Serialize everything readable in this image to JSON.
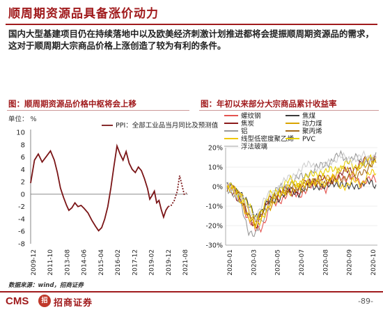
{
  "slide": {
    "title": "顺周期资源品具备涨价动力",
    "body": "国内大型基建项目仍在持续落地中以及欧美经济刺激计划推进都将会提振顺周期资源品的需求，这对于顺周期大宗商品价格上涨创造了较为有利的条件。",
    "source": "数据来源：wind，招商证券",
    "brand_en": "CMS",
    "brand_logo": "招",
    "brand_cn": "招商证券",
    "page": "-89-"
  },
  "colors": {
    "accent": "#a01a1c",
    "ppi_line": "#7a1416"
  },
  "chart_data": [
    {
      "type": "line",
      "title": "图：顺周期资源品价格中枢将会上移",
      "unit_label": "单位：  %",
      "legend": [
        "PPI：全部工业品当月同比及预测值"
      ],
      "legend_position": "top-right",
      "ylim": [
        -8,
        10
      ],
      "yticks": [
        -8,
        -6,
        -4,
        -2,
        0,
        2,
        4,
        6,
        8,
        10
      ],
      "xticks": [
        "2009-12",
        "2011-10",
        "2013-08",
        "2014-06",
        "2015-04",
        "2016-02",
        "2017-12",
        "2019-02",
        "2019-12",
        "2021-08"
      ],
      "grid": false,
      "series": [
        {
          "name": "PPI：全部工业品当月同比及预测值",
          "style": "solid",
          "points": [
            [
              0,
              1.8
            ],
            [
              0.5,
              5.5
            ],
            [
              1,
              6.5
            ],
            [
              1.5,
              5.2
            ],
            [
              2,
              6.0
            ],
            [
              2.6,
              7.0
            ],
            [
              3.1,
              5.5
            ],
            [
              3.5,
              3.5
            ],
            [
              3.9,
              1.0
            ],
            [
              4.3,
              -0.5
            ],
            [
              4.7,
              -1.8
            ],
            [
              5,
              -2.6
            ],
            [
              5.4,
              -2.2
            ],
            [
              5.8,
              -1.4
            ],
            [
              6.2,
              -2.0
            ],
            [
              6.6,
              -1.8
            ],
            [
              7,
              -2.3
            ],
            [
              7.5,
              -3.0
            ],
            [
              8,
              -4.2
            ],
            [
              8.5,
              -5.2
            ],
            [
              8.9,
              -5.9
            ],
            [
              9.3,
              -5.4
            ],
            [
              9.7,
              -4.0
            ],
            [
              10.1,
              -2.0
            ],
            [
              10.5,
              1.0
            ],
            [
              10.9,
              4.5
            ],
            [
              11.3,
              7.8
            ],
            [
              11.7,
              6.5
            ],
            [
              12.1,
              5.5
            ],
            [
              12.5,
              6.9
            ],
            [
              12.9,
              5.0
            ],
            [
              13.3,
              4.0
            ],
            [
              13.7,
              3.5
            ],
            [
              14.1,
              4.4
            ],
            [
              14.5,
              3.8
            ],
            [
              14.9,
              2.5
            ],
            [
              15.3,
              0.9
            ],
            [
              15.6,
              -0.8
            ],
            [
              15.9,
              -0.2
            ],
            [
              16.2,
              0.5
            ],
            [
              16.5,
              -1.4
            ],
            [
              16.8,
              -1.0
            ],
            [
              17.1,
              -2.5
            ],
            [
              17.4,
              -3.7
            ],
            [
              17.7,
              -2.6
            ],
            [
              18,
              -2.0
            ]
          ]
        },
        {
          "name": "预测值",
          "style": "dotted",
          "points": [
            [
              18,
              -2.0
            ],
            [
              18.4,
              -1.8
            ],
            [
              18.8,
              -1.0
            ],
            [
              19.2,
              0.5
            ],
            [
              19.5,
              3.0
            ],
            [
              19.8,
              1.5
            ],
            [
              20.1,
              0.0
            ],
            [
              20.4,
              0.2
            ]
          ]
        }
      ]
    },
    {
      "type": "line",
      "title": "图：年初以来部分大宗商品累计收益率",
      "ylim": [
        -30,
        20
      ],
      "yticks": [
        "20%",
        "10%",
        "0%",
        "-10%",
        "-20%",
        "-30%"
      ],
      "xticks": [
        "2020-01",
        "2020-03",
        "2020-05",
        "2020-07",
        "2020-08",
        "2020-09",
        "2020-10"
      ],
      "grid": true,
      "legend_position": "top-left",
      "series": [
        {
          "name": "螺纹钢",
          "color": "#e4534f"
        },
        {
          "name": "焦煤",
          "color": "#3a3a3a"
        },
        {
          "name": "焦炭",
          "color": "#8b1a1a"
        },
        {
          "name": "动力煤",
          "color": "#d9a400"
        },
        {
          "name": "铝",
          "color": "#999999"
        },
        {
          "name": "聚丙烯",
          "color": "#a36a1e"
        },
        {
          "name": "线型低密度聚乙烯",
          "color": "#f0c800"
        },
        {
          "name": "PVC",
          "color": "#e6d000"
        },
        {
          "name": "浮法玻璃",
          "color": "#cfcfcf"
        }
      ],
      "line_trends": [
        [
          0,
          -2,
          -6,
          -18,
          -22,
          -20,
          -12,
          -8,
          -5,
          -3,
          -4,
          -2,
          0,
          2,
          -2,
          4,
          6,
          3,
          5,
          2,
          3,
          4
        ],
        [
          0,
          -1,
          -3,
          -10,
          -15,
          -12,
          -8,
          -6,
          -4,
          -2,
          -3,
          -1,
          0,
          1,
          -1,
          2,
          2,
          -1,
          1,
          1,
          2,
          1
        ],
        [
          0,
          -3,
          -8,
          -15,
          -20,
          -14,
          -6,
          -4,
          -2,
          -3,
          -1,
          1,
          3,
          5,
          2,
          4,
          6,
          8,
          10,
          12,
          14,
          16
        ],
        [
          0,
          -2,
          -5,
          -12,
          -18,
          -16,
          -10,
          -6,
          -4,
          -2,
          0,
          2,
          4,
          3,
          5,
          6,
          8,
          9,
          7,
          10,
          12,
          16
        ],
        [
          0,
          -4,
          -10,
          -22,
          -25,
          -18,
          -8,
          -2,
          0,
          2,
          4,
          6,
          8,
          10,
          12,
          14,
          16,
          14,
          15,
          12,
          14,
          15
        ],
        [
          0,
          -2,
          -6,
          -14,
          -19,
          -12,
          -8,
          -5,
          -2,
          0,
          -2,
          0,
          2,
          1,
          3,
          2,
          4,
          6,
          3,
          8,
          10,
          12
        ],
        [
          0,
          -3,
          -7,
          -16,
          -21,
          -15,
          -10,
          -4,
          -2,
          1,
          0,
          2,
          0,
          3,
          2,
          4,
          1,
          0,
          3,
          2,
          6,
          7
        ],
        [
          0,
          -1,
          -4,
          -10,
          -16,
          -11,
          -5,
          -2,
          1,
          3,
          2,
          4,
          6,
          8,
          7,
          9,
          10,
          12,
          10,
          12,
          14,
          13
        ],
        [
          0,
          -2,
          -5,
          -12,
          -15,
          -9,
          -4,
          -1,
          2,
          5,
          8,
          10,
          12,
          9,
          11,
          14,
          16,
          13,
          15,
          16,
          14,
          17
        ]
      ]
    }
  ]
}
